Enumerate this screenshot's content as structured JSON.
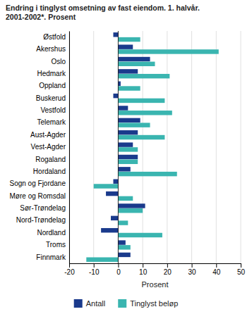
{
  "chart_data": {
    "type": "bar",
    "orientation": "horizontal",
    "title": "Endring i tinglyst omsetning av fast eiendom. 1. halvår.\n2001-2002*. Prosent",
    "categories": [
      "Østfold",
      "Akershus",
      "Oslo",
      "Hedmark",
      "Oppland",
      "Buskerud",
      "Vestfold",
      "Telemark",
      "Aust-Agder",
      "Vest-Agder",
      "Rogaland",
      "Hordaland",
      "Sogn og Fjordane",
      "Møre og Romsdal",
      "Sør-Trøndelag",
      "Nord-Trøndelag",
      "Nordland",
      "Troms",
      "Finnmark"
    ],
    "series": [
      {
        "name": "Antall",
        "color": "#1a3a8c",
        "values": [
          -2,
          6,
          13,
          8,
          1,
          -2,
          4,
          9,
          8,
          6,
          8,
          5,
          -2,
          -5,
          11,
          -3,
          -7,
          3,
          5
        ]
      },
      {
        "name": "Tinglyst beløp",
        "color": "#3ab5b0",
        "values": [
          9,
          41,
          15,
          21,
          9,
          19,
          22,
          13,
          19,
          8,
          8,
          24,
          -10,
          6,
          10,
          4,
          18,
          5,
          -13
        ]
      }
    ],
    "xlabel": "Prosent",
    "xlim": [
      -20,
      50
    ],
    "xticks": [
      -20,
      -10,
      0,
      10,
      20,
      30,
      40,
      50
    ],
    "grid": true,
    "legend": "bottom"
  }
}
